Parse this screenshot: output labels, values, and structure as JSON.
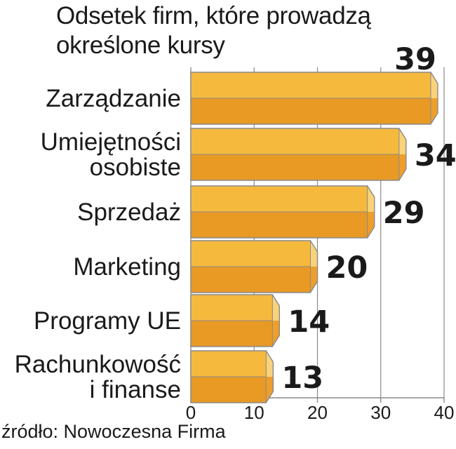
{
  "chart_data": {
    "type": "bar",
    "orientation": "horizontal",
    "title": "Odsetek firm, które prowadzą określone kursy",
    "categories": [
      [
        "Zarządzanie"
      ],
      [
        "Umiejętności",
        "osobiste"
      ],
      [
        "Sprzedaż"
      ],
      [
        "Marketing"
      ],
      [
        "Programy UE"
      ],
      [
        "Rachunkowość",
        "i finanse"
      ]
    ],
    "values": [
      39,
      34,
      29,
      20,
      14,
      13
    ],
    "value_labels": [
      "39",
      "34",
      "29",
      "20",
      "14",
      "13"
    ],
    "xlim": [
      0,
      40
    ],
    "xticks": [
      0,
      10,
      20,
      30,
      40
    ],
    "xtick_labels": [
      "0",
      "10",
      "20",
      "30",
      "40"
    ],
    "grid": "vertical",
    "source": "źródło: Nowoczesna Firma",
    "colors": {
      "bar_top": "#f5b93e",
      "bar_bottom": "#e89a25",
      "bar_end_light": "#f9d27a",
      "bar_end_dark": "#ef9e2a",
      "outline": "#8a8a8a",
      "grid": "#8a8a8a",
      "text": "#1a1a1a"
    }
  }
}
